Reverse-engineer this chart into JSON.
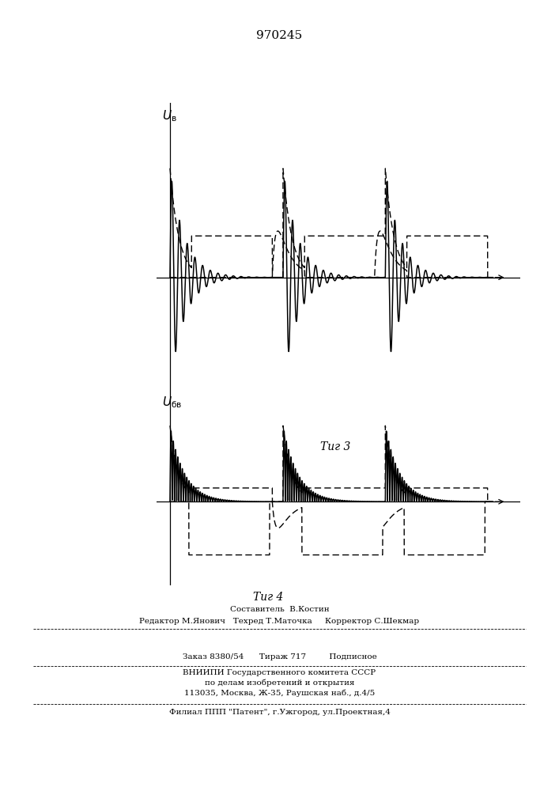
{
  "title_patent": "970245",
  "background_color": "#ffffff",
  "fig3_y_label": "Uв",
  "fig4_y_label": "Uбв",
  "fig3_caption": "Τиг 3",
  "fig4_caption": "Τиг 4",
  "footer_lines": [
    "Составитель  В.Костин",
    "Редактор М.Янович   Техред Т.Маточка     Корректор С.Шекмар",
    "Заказ 8380/54      Тираж 717         Подписное",
    "ВНИИПИ Государственного комитета СССР",
    "по делам изобретений и открытия",
    "113035, Москва, Ж-35, Раушская наб., д.4/5",
    "Филиал ППП \"Патент\", г.Ужгород, ул.Проектная,4"
  ]
}
